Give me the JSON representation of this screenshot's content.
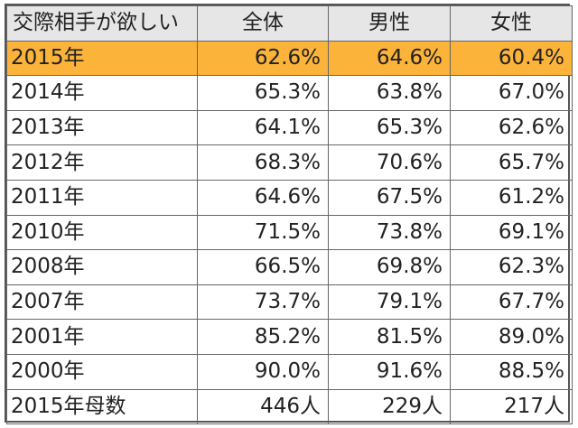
{
  "table": {
    "headers": [
      "交際相手が欲しい",
      "全体",
      "男性",
      "女性"
    ],
    "rows": [
      {
        "label": "2015年",
        "total": "62.6%",
        "male": "64.6%",
        "female": "60.4%"
      },
      {
        "label": "2014年",
        "total": "65.3%",
        "male": "63.8%",
        "female": "67.0%"
      },
      {
        "label": "2013年",
        "total": "64.1%",
        "male": "65.3%",
        "female": "62.6%"
      },
      {
        "label": "2012年",
        "total": "68.3%",
        "male": "70.6%",
        "female": "65.7%"
      },
      {
        "label": "2011年",
        "total": "64.6%",
        "male": "67.5%",
        "female": "61.2%"
      },
      {
        "label": "2010年",
        "total": "71.5%",
        "male": "73.8%",
        "female": "69.1%"
      },
      {
        "label": "2008年",
        "total": "66.5%",
        "male": "69.8%",
        "female": "62.3%"
      },
      {
        "label": "2007年",
        "total": "73.7%",
        "male": "79.1%",
        "female": "67.7%"
      },
      {
        "label": "2001年",
        "total": "85.2%",
        "male": "81.5%",
        "female": "89.0%"
      },
      {
        "label": "2000年",
        "total": "90.0%",
        "male": "91.6%",
        "female": "88.5%"
      },
      {
        "label": "2015年母数",
        "total": "446人",
        "male": "229人",
        "female": "217人"
      }
    ]
  },
  "colors": {
    "highlight": "#fbb33a",
    "header_bg": "#e6e6e6",
    "border": "#555555"
  }
}
